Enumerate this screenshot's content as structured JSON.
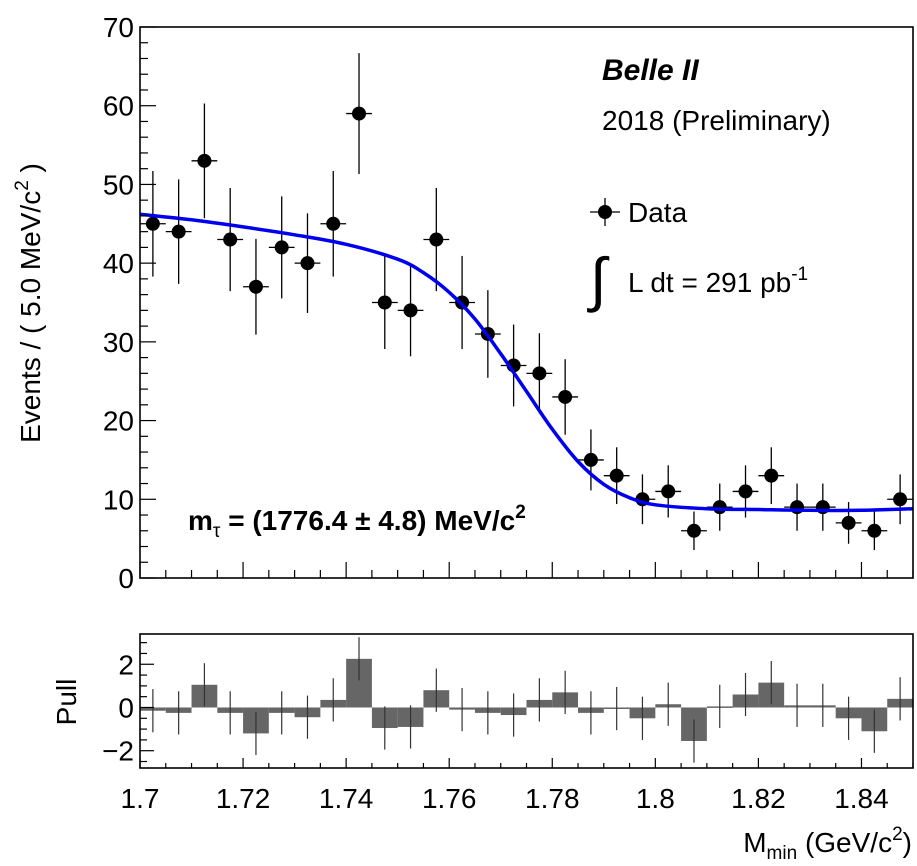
{
  "chart_data": [
    {
      "type": "scatter",
      "panel": "main",
      "ylabel": "Events / ( 5.0 MeV/c",
      "ylabel_sup": "2",
      "ylabel_close": " )",
      "ylim": [
        0,
        70
      ],
      "xlim": [
        1.7,
        1.85
      ],
      "yticks": [
        0,
        10,
        20,
        30,
        40,
        50,
        60,
        70
      ],
      "experiment": "Belle II",
      "period": "2018 (Preliminary)",
      "legend": {
        "position": "top-right",
        "series": "Data"
      },
      "lumi": {
        "integral": "∫",
        "text": "L dt = 291 pb",
        "sup": "-1"
      },
      "result": {
        "text": "m",
        "sub": "τ",
        "value": " = (1776.4 ± 4.8) MeV/c",
        "sup": "2"
      },
      "colors": {
        "data": "#000000",
        "fit": "#0000ee"
      },
      "series": [
        {
          "name": "Data",
          "x": [
            1.7025,
            1.7075,
            1.7125,
            1.7175,
            1.7225,
            1.7275,
            1.7325,
            1.7375,
            1.7425,
            1.7475,
            1.7525,
            1.7575,
            1.7625,
            1.7675,
            1.7725,
            1.7775,
            1.7825,
            1.7875,
            1.7925,
            1.7975,
            1.8025,
            1.8075,
            1.8125,
            1.8175,
            1.8225,
            1.8275,
            1.8325,
            1.8375,
            1.8425,
            1.8475
          ],
          "y": [
            45,
            44,
            53,
            43,
            37,
            42,
            40,
            45,
            59,
            35,
            34,
            43,
            35,
            31,
            27,
            26,
            23,
            15,
            13,
            10,
            11,
            6,
            9,
            11,
            13,
            9,
            9,
            7,
            6,
            10
          ]
        },
        {
          "name": "Fit",
          "x": [
            1.7,
            1.71,
            1.72,
            1.73,
            1.74,
            1.75,
            1.755,
            1.76,
            1.765,
            1.77,
            1.775,
            1.78,
            1.785,
            1.79,
            1.795,
            1.8,
            1.81,
            1.82,
            1.83,
            1.84,
            1.85
          ],
          "y": [
            46.2,
            45.5,
            44.6,
            43.6,
            42.4,
            40.5,
            38.8,
            36.3,
            32.9,
            28.5,
            23.7,
            18.9,
            14.8,
            11.9,
            10.2,
            9.3,
            8.8,
            8.7,
            8.6,
            8.6,
            8.8
          ]
        }
      ]
    },
    {
      "type": "bar",
      "panel": "pull",
      "ylabel": "Pull",
      "xlabel": "M",
      "xlabel_sub": "min",
      "xlabel_rest": " (GeV/c",
      "xlabel_sup": "2",
      "xlabel_close": ")",
      "xlim": [
        1.7,
        1.85
      ],
      "ylim": [
        -2.8,
        3.4
      ],
      "yticks": [
        -2,
        0,
        2
      ],
      "ytick_labels": [
        "−2",
        "0",
        "2"
      ],
      "xticks": [
        1.7,
        1.72,
        1.74,
        1.76,
        1.78,
        1.8,
        1.82,
        1.84
      ],
      "xtick_labels": [
        "1.7",
        "1.72",
        "1.74",
        "1.76",
        "1.78",
        "1.8",
        "1.82",
        "1.84"
      ],
      "colors": {
        "bar": "#666666"
      },
      "x": [
        1.7025,
        1.7075,
        1.7125,
        1.7175,
        1.7225,
        1.7275,
        1.7325,
        1.7375,
        1.7425,
        1.7475,
        1.7525,
        1.7575,
        1.7625,
        1.7675,
        1.7725,
        1.7775,
        1.7825,
        1.7875,
        1.7925,
        1.7975,
        1.8025,
        1.8075,
        1.8125,
        1.8175,
        1.8225,
        1.8275,
        1.8325,
        1.8375,
        1.8425,
        1.8475
      ],
      "values": [
        -0.15,
        -0.25,
        1.05,
        -0.25,
        -1.2,
        -0.25,
        -0.45,
        0.35,
        2.25,
        -0.95,
        -0.9,
        0.8,
        -0.1,
        -0.25,
        -0.35,
        0.35,
        0.7,
        -0.25,
        -0.05,
        -0.5,
        0.15,
        -1.55,
        0.05,
        0.6,
        1.15,
        0.1,
        0.1,
        -0.5,
        -1.1,
        0.4
      ]
    }
  ]
}
